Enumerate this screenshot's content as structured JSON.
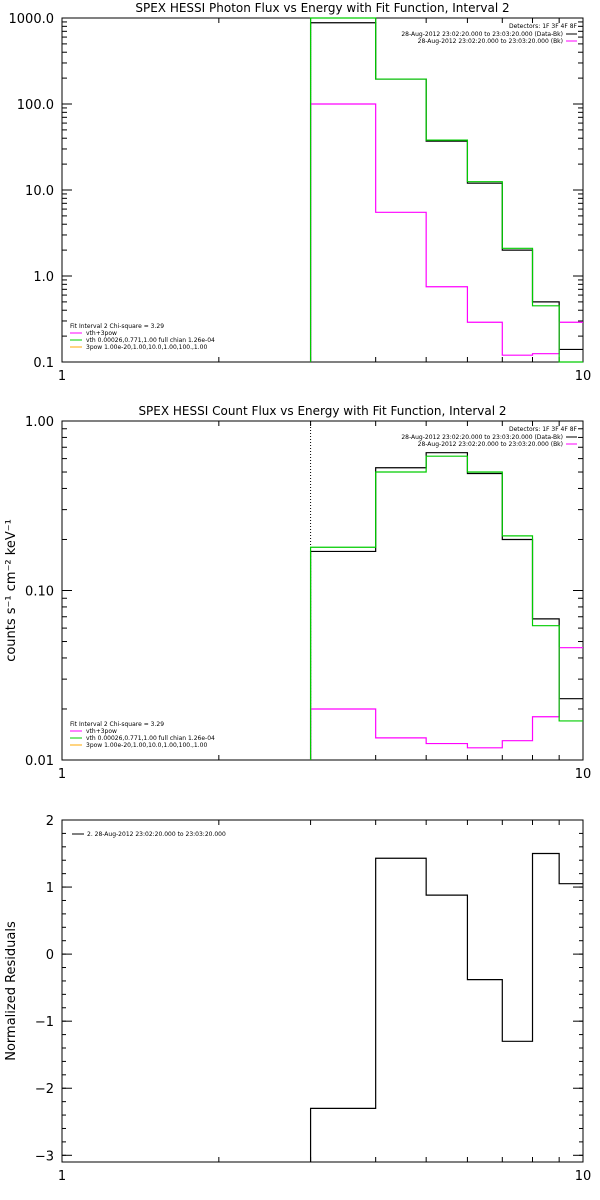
{
  "chart_data": [
    {
      "type": "line",
      "title": "SPEX HESSI Photon Flux vs Energy with Fit Function, Interval 2",
      "xlabel": "",
      "ylabel": "",
      "xscale": "log",
      "yscale": "log",
      "xlim": [
        1,
        10
      ],
      "ylim": [
        0.1,
        1000
      ],
      "xticks": [
        {
          "v": 1,
          "label": "1"
        },
        {
          "v": 10,
          "label": "10"
        }
      ],
      "yticks": [
        {
          "v": 0.1,
          "label": "0.1"
        },
        {
          "v": 1,
          "label": "1.0"
        },
        {
          "v": 10,
          "label": "10.0"
        },
        {
          "v": 100,
          "label": "100.0"
        },
        {
          "v": 1000,
          "label": "1000.0"
        }
      ],
      "vline": 3,
      "vline_style": "dashed-green",
      "edges": [
        3,
        4,
        5,
        6,
        7,
        8,
        9,
        10
      ],
      "series": [
        {
          "name": "28-Aug-2012 23:02:20.000 to 23:03:20.000 (Data-Bk)",
          "color": "#000000",
          "values": [
            880,
            195,
            37,
            12,
            2.0,
            0.5,
            0.14
          ]
        },
        {
          "name": "28-Aug-2012 23:02:20.000 to 23:03:20.000 (Bk)",
          "color": "#ff00ff",
          "values": [
            100,
            5.5,
            0.75,
            0.29,
            0.12,
            0.125,
            0.29
          ]
        },
        {
          "name": "vth+3pow",
          "color": "#00cc00",
          "values": [
            1000,
            195,
            38,
            12.5,
            2.1,
            0.45,
            0.1
          ]
        }
      ],
      "legend_top": {
        "header": "Detectors: 1F 3F 4F 8F",
        "entries": [
          {
            "text": "28-Aug-2012 23:02:20.000 to 23:03:20.000 (Data-Bk)",
            "color": "#000000"
          },
          {
            "text": "28-Aug-2012 23:02:20.000 to 23:03:20.000 (Bk)",
            "color": "#ff00ff"
          }
        ]
      },
      "legend_bottom": {
        "header": "Fit Interval 2   Chi-square = 3.29",
        "entries": [
          {
            "text": "vth+3pow",
            "color": "#ff00ff"
          },
          {
            "text": "vth 0.00026,0.771,1.00   full chian 1.26e-04",
            "color": "#00cc00"
          },
          {
            "text": "3pow 1.00e-20,1.00,10.0,1.00,100.,1.00",
            "color": "#ffaa00"
          }
        ]
      }
    },
    {
      "type": "line",
      "title": "SPEX HESSI Count Flux vs Energy with Fit Function, Interval 2",
      "xlabel": "",
      "ylabel": "counts s⁻¹ cm⁻² keV⁻¹",
      "xscale": "log",
      "yscale": "log",
      "xlim": [
        1,
        10
      ],
      "ylim": [
        0.01,
        1.0
      ],
      "xticks": [
        {
          "v": 1,
          "label": "1"
        },
        {
          "v": 10,
          "label": "10"
        }
      ],
      "yticks": [
        {
          "v": 0.01,
          "label": "0.01"
        },
        {
          "v": 0.1,
          "label": "0.10"
        },
        {
          "v": 1,
          "label": "1.00"
        }
      ],
      "vline": 3,
      "vline_style": "dotted-black",
      "edges": [
        3,
        4,
        5,
        6,
        7,
        8,
        9,
        10
      ],
      "series": [
        {
          "name": "28-Aug-2012 23:02:20.000 to 23:03:20.000 (Data-Bk)",
          "color": "#000000",
          "values": [
            0.17,
            0.53,
            0.65,
            0.49,
            0.2,
            0.068,
            0.023
          ]
        },
        {
          "name": "28-Aug-2012 23:02:20.000 to 23:03:20.000 (Bk)",
          "color": "#ff00ff",
          "values": [
            0.02,
            0.0135,
            0.0125,
            0.0118,
            0.013,
            0.018,
            0.046
          ]
        },
        {
          "name": "vth+3pow",
          "color": "#00cc00",
          "values": [
            0.18,
            0.5,
            0.62,
            0.5,
            0.21,
            0.062,
            0.017
          ]
        }
      ],
      "legend_top": {
        "header": "Detectors: 1F 3F 4F 8F",
        "entries": [
          {
            "text": "28-Aug-2012 23:02:20.000 to 23:03:20.000 (Data-Bk)",
            "color": "#000000"
          },
          {
            "text": "28-Aug-2012 23:02:20.000 to 23:03:20.000 (Bk)",
            "color": "#ff00ff"
          }
        ]
      },
      "legend_bottom": {
        "header": "Fit Interval 2   Chi-square = 3.29",
        "entries": [
          {
            "text": "vth+3pow",
            "color": "#ff00ff"
          },
          {
            "text": "vth 0.00026,0.771,1.00   full chian 1.26e-04",
            "color": "#00cc00"
          },
          {
            "text": "3pow 1.00e-20,1.00,10.0,1.00,100.,1.00",
            "color": "#ffaa00"
          }
        ]
      }
    },
    {
      "type": "line",
      "title": "",
      "xlabel": "",
      "ylabel": "Normalized Residuals",
      "xscale": "log",
      "yscale": "linear",
      "xlim": [
        1,
        10
      ],
      "ylim": [
        -3.1,
        2.0
      ],
      "xticks": [
        {
          "v": 1,
          "label": "1"
        },
        {
          "v": 10,
          "label": "10"
        }
      ],
      "yticks": [
        {
          "v": -3,
          "label": "−3"
        },
        {
          "v": -2,
          "label": "−2"
        },
        {
          "v": -1,
          "label": "−1"
        },
        {
          "v": 0,
          "label": "0"
        },
        {
          "v": 1,
          "label": "1"
        },
        {
          "v": 2,
          "label": "2"
        }
      ],
      "edges": [
        3,
        4,
        5,
        6,
        7,
        8,
        9,
        10
      ],
      "series": [
        {
          "name": "2. 28-Aug-2012 23:02:20.000 to 23:03:20.000",
          "color": "#000000",
          "values": [
            -2.3,
            1.43,
            0.88,
            -0.38,
            -1.3,
            1.5,
            1.05
          ]
        }
      ],
      "legend_top": {
        "header": "",
        "entries": [
          {
            "text": "2. 28-Aug-2012 23:02:20.000 to 23:03:20.000",
            "color": "#000000"
          }
        ]
      }
    }
  ]
}
